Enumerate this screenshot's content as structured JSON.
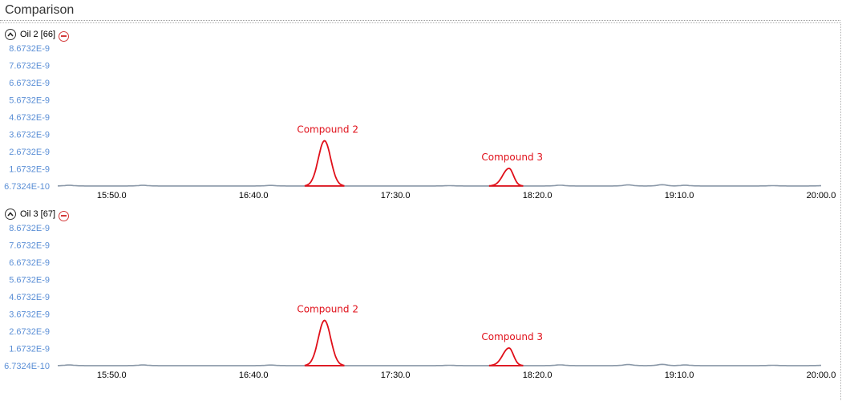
{
  "window": {
    "title": "Comparison"
  },
  "colors": {
    "trace": "#8a98a8",
    "peak": "#e0101a",
    "ytick": "#5b8fd6",
    "remove": "#d43a3a"
  },
  "icons": {
    "collapse": "chevron-up-icon",
    "remove": "minus-circle-icon"
  },
  "chart_data": [
    {
      "type": "line",
      "panel_label": "Oil 2 [66]",
      "y_ticks": [
        "8.6732E-9",
        "7.6732E-9",
        "6.6732E-9",
        "5.6732E-9",
        "4.6732E-9",
        "3.6732E-9",
        "2.6732E-9",
        "1.6732E-9",
        "6.7324E-10"
      ],
      "y_tick_values": [
        8.6732e-09,
        7.6732e-09,
        6.6732e-09,
        5.6732e-09,
        4.6732e-09,
        3.6732e-09,
        2.6732e-09,
        1.6732e-09,
        6.7324e-10
      ],
      "ylim": [
        6.7324e-10,
        8.6732e-09
      ],
      "x_ticks": [
        "15:50.0",
        "16:40.0",
        "17:30.0",
        "18:20.0",
        "19:10.0",
        "20:00.0"
      ],
      "x_tick_values": [
        950,
        1000,
        1050,
        1100,
        1150,
        1200
      ],
      "xlim": [
        931,
        1200
      ],
      "baseline": 6.8e-10,
      "trace_peaks": [
        {
          "t": 935,
          "h": 3.5e-11
        },
        {
          "t": 961,
          "h": 3.5e-11
        },
        {
          "t": 1006,
          "h": 3e-11
        },
        {
          "t": 1069,
          "h": 1.5e-11
        },
        {
          "t": 1108,
          "h": 4e-11
        },
        {
          "t": 1132,
          "h": 6e-11
        },
        {
          "t": 1144,
          "h": 7e-11
        },
        {
          "t": 1152,
          "h": 3.5e-11
        },
        {
          "t": 1183,
          "h": 1.5e-11
        },
        {
          "t": 1200,
          "h": 1e-11
        }
      ],
      "peaks": [
        {
          "label": "Compound 2",
          "apex_t": 1025,
          "start_t": 1018,
          "end_t": 1032,
          "apex_y": 3.3e-09
        },
        {
          "label": "Compound 3",
          "apex_t": 1090,
          "start_t": 1083,
          "end_t": 1095,
          "apex_y": 1.7e-09
        }
      ]
    },
    {
      "type": "line",
      "panel_label": "Oil 3 [67]",
      "y_ticks": [
        "8.6732E-9",
        "7.6732E-9",
        "6.6732E-9",
        "5.6732E-9",
        "4.6732E-9",
        "3.6732E-9",
        "2.6732E-9",
        "1.6732E-9",
        "6.7324E-10"
      ],
      "y_tick_values": [
        8.6732e-09,
        7.6732e-09,
        6.6732e-09,
        5.6732e-09,
        4.6732e-09,
        3.6732e-09,
        2.6732e-09,
        1.6732e-09,
        6.7324e-10
      ],
      "ylim": [
        6.7324e-10,
        8.6732e-09
      ],
      "x_ticks": [
        "15:50.0",
        "16:40.0",
        "17:30.0",
        "18:20.0",
        "19:10.0",
        "20:00.0"
      ],
      "x_tick_values": [
        950,
        1000,
        1050,
        1100,
        1150,
        1200
      ],
      "xlim": [
        931,
        1200
      ],
      "baseline": 6.8e-10,
      "trace_peaks": [
        {
          "t": 935,
          "h": 3.5e-11
        },
        {
          "t": 961,
          "h": 3.5e-11
        },
        {
          "t": 1006,
          "h": 3e-11
        },
        {
          "t": 1069,
          "h": 1.5e-11
        },
        {
          "t": 1108,
          "h": 4e-11
        },
        {
          "t": 1132,
          "h": 6e-11
        },
        {
          "t": 1144,
          "h": 7e-11
        },
        {
          "t": 1152,
          "h": 3.5e-11
        },
        {
          "t": 1183,
          "h": 1.5e-11
        },
        {
          "t": 1200,
          "h": 1e-11
        }
      ],
      "peaks": [
        {
          "label": "Compound 2",
          "apex_t": 1025,
          "start_t": 1018,
          "end_t": 1032,
          "apex_y": 3.3e-09
        },
        {
          "label": "Compound 3",
          "apex_t": 1090,
          "start_t": 1083,
          "end_t": 1095,
          "apex_y": 1.7e-09
        }
      ]
    }
  ]
}
